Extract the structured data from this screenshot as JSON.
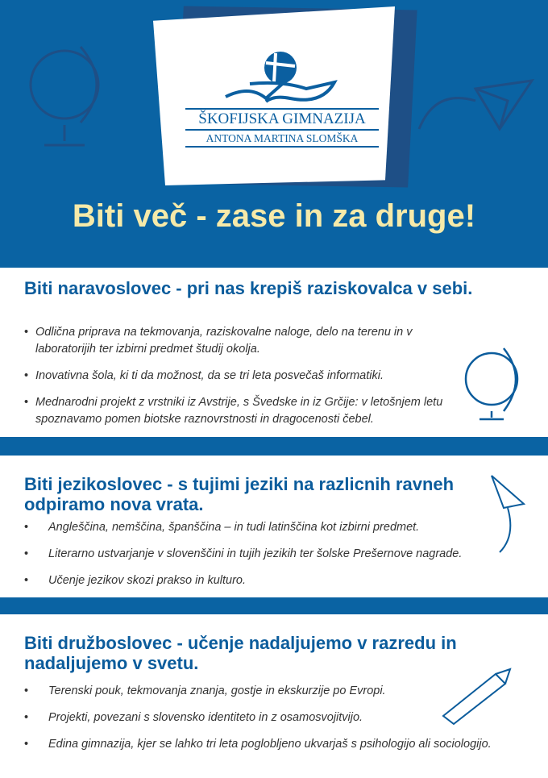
{
  "logo": {
    "line1": "ŠKOFIJSKA GIMNAZIJA",
    "line2": "ANTONA MARTINA SLOMŠKA"
  },
  "title": "Biti več - zase in za druge!",
  "sections": [
    {
      "heading": "Biti naravoslovec - pri nas krepiš raziskovalca v sebi.",
      "items": [
        "Odlična priprava na tekmovanja, raziskovalne naloge, delo na terenu in v laboratorijih ter izbirni predmet študij okolja.",
        "Inovativna šola, ki ti da možnost, da se tri leta posvečaš informatiki.",
        "Mednarodni projekt z vrstniki iz Avstrije, s Švedske in iz Grčije: v letošnjem letu spoznavamo pomen biotske raznovrstnosti in dragocenosti čebel."
      ]
    },
    {
      "heading": "Biti jezikoslovec - s tujimi jeziki na razlicnih ravneh odpiramo nova vrata.",
      "items": [
        "Angleščina, nemščina, španščina – in tudi latinščina kot izbirni predmet.",
        "Literarno ustvarjanje v slovenščini in tujih jezikih ter šolske Prešernove nagrade.",
        "Učenje jezikov skozi prakso in kulturo."
      ]
    },
    {
      "heading": "Biti družboslovec - učenje nadaljujemo v razredu in nadaljujemo v svetu.",
      "items": [
        "Terenski pouk, tekmovanja znanja, gostje in ekskurzije po Evropi.",
        "Projekti, povezani s slovensko identiteto in z osamosvojitvijo.",
        "Edina gimnazija, kjer se lahko tri leta poglobljeno ukvarjaš s psihologijo ali sociologijo."
      ]
    }
  ],
  "colors": {
    "blue": "#0a63a3",
    "title": "#f6eaa9",
    "heading": "#0b5c9c"
  }
}
